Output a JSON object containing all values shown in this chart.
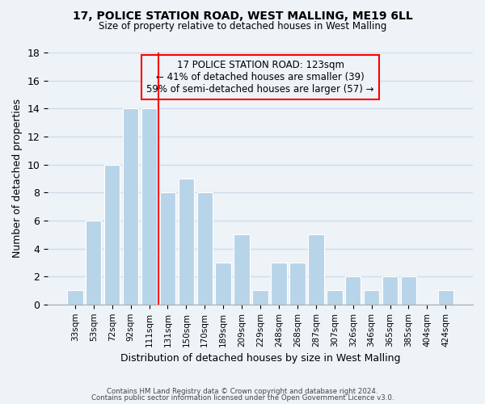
{
  "title": "17, POLICE STATION ROAD, WEST MALLING, ME19 6LL",
  "subtitle": "Size of property relative to detached houses in West Malling",
  "xlabel": "Distribution of detached houses by size in West Malling",
  "ylabel": "Number of detached properties",
  "bar_color": "#b8d4e8",
  "bar_edge_color": "#b8d4e8",
  "categories": [
    "33sqm",
    "53sqm",
    "72sqm",
    "92sqm",
    "111sqm",
    "131sqm",
    "150sqm",
    "170sqm",
    "189sqm",
    "209sqm",
    "229sqm",
    "248sqm",
    "268sqm",
    "287sqm",
    "307sqm",
    "326sqm",
    "346sqm",
    "365sqm",
    "385sqm",
    "404sqm",
    "424sqm"
  ],
  "values": [
    1,
    6,
    10,
    14,
    14,
    8,
    9,
    8,
    3,
    5,
    1,
    3,
    3,
    5,
    1,
    2,
    1,
    2,
    2,
    0,
    1
  ],
  "property_line_x": 4.5,
  "property_line_color": "red",
  "annotation_text": "17 POLICE STATION ROAD: 123sqm\n← 41% of detached houses are smaller (39)\n59% of semi-detached houses are larger (57) →",
  "ylim": [
    0,
    18
  ],
  "yticks": [
    0,
    2,
    4,
    6,
    8,
    10,
    12,
    14,
    16,
    18
  ],
  "footer1": "Contains HM Land Registry data © Crown copyright and database right 2024.",
  "footer2": "Contains public sector information licensed under the Open Government Licence v3.0.",
  "grid_color": "#d0dce8",
  "background_color": "#eef3f8"
}
